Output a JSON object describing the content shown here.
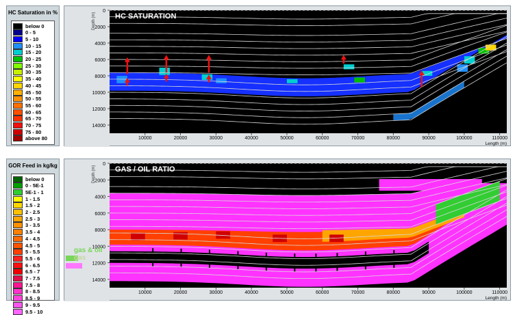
{
  "chart_data": [
    {
      "type": "heatmap",
      "title": "HC SATURATION",
      "xlabel": "Length (m)",
      "ylabel": "Depth (m)",
      "xlim": [
        0,
        112000
      ],
      "ylim": [
        15000,
        0
      ],
      "x_ticks": [
        10000,
        20000,
        30000,
        40000,
        50000,
        60000,
        70000,
        80000,
        90000,
        100000,
        110000
      ],
      "y_ticks": [
        0,
        2000,
        4000,
        6000,
        8000,
        10000,
        12000,
        14000
      ],
      "legend_title": "HC Saturation in %",
      "legend": [
        {
          "label": "below 0",
          "color": "#000000"
        },
        {
          "label": "0 - 5",
          "color": "#00008b"
        },
        {
          "label": "5 - 10",
          "color": "#0000ff"
        },
        {
          "label": "10 - 15",
          "color": "#1e90ff"
        },
        {
          "label": "15 - 20",
          "color": "#00ced1"
        },
        {
          "label": "20 - 25",
          "color": "#00c000"
        },
        {
          "label": "25 - 30",
          "color": "#7fff00"
        },
        {
          "label": "30 - 35",
          "color": "#c8f000"
        },
        {
          "label": "35 - 40",
          "color": "#ffff00"
        },
        {
          "label": "40 - 45",
          "color": "#ffd700"
        },
        {
          "label": "45 - 50",
          "color": "#ffb000"
        },
        {
          "label": "50 - 55",
          "color": "#ff9000"
        },
        {
          "label": "55 - 60",
          "color": "#ff7000"
        },
        {
          "label": "60 - 65",
          "color": "#ff5000"
        },
        {
          "label": "65 - 70",
          "color": "#ff3000"
        },
        {
          "label": "70 - 75",
          "color": "#f01010"
        },
        {
          "label": "75 - 80",
          "color": "#d00000"
        },
        {
          "label": "above 80",
          "color": "#a00000"
        }
      ]
    },
    {
      "type": "heatmap",
      "title": "GAS / OIL RATIO",
      "xlabel": "Length (m)",
      "ylabel": "Depth (m)",
      "xlim": [
        0,
        112000
      ],
      "ylim": [
        15000,
        0
      ],
      "x_ticks": [
        10000,
        20000,
        30000,
        40000,
        50000,
        60000,
        70000,
        80000,
        90000,
        100000,
        110000
      ],
      "y_ticks": [
        0,
        2000,
        4000,
        6000,
        8000,
        10000,
        12000,
        14000
      ],
      "legend_title": "GOR Feed in kg/kg",
      "legend": [
        {
          "label": "below 0",
          "color": "#006400"
        },
        {
          "label": "0 - 5E-1",
          "color": "#00a000"
        },
        {
          "label": "5E-1 - 1",
          "color": "#32cd32"
        },
        {
          "label": "1 - 1.5",
          "color": "#ffff00"
        },
        {
          "label": "1.5 - 2",
          "color": "#ffd700"
        },
        {
          "label": "2 - 2.5",
          "color": "#ffc000"
        },
        {
          "label": "2.5 - 3",
          "color": "#ffa500"
        },
        {
          "label": "3 - 3.5",
          "color": "#ff9000"
        },
        {
          "label": "3.5 - 4",
          "color": "#ff8000"
        },
        {
          "label": "4 - 4.5",
          "color": "#ff6a00"
        },
        {
          "label": "4.5 - 5",
          "color": "#ff5500"
        },
        {
          "label": "5 - 5.5",
          "color": "#ff4000"
        },
        {
          "label": "5.5 - 6",
          "color": "#ff2020"
        },
        {
          "label": "6 - 6.5",
          "color": "#ff1010"
        },
        {
          "label": "6.5 - 7",
          "color": "#f00000"
        },
        {
          "label": "7 - 7.5",
          "color": "#e0104a"
        },
        {
          "label": "7.5 - 8",
          "color": "#ff1493"
        },
        {
          "label": "8 - 8.5",
          "color": "#ff33cc"
        },
        {
          "label": "8.5 - 9",
          "color": "#ff44dd"
        },
        {
          "label": "9 - 9.5",
          "color": "#ff55ee"
        },
        {
          "label": "9.5 - 10",
          "color": "#ff66ff"
        }
      ],
      "overlay_labels": [
        "gas & oil",
        "gas"
      ]
    }
  ],
  "colors": {
    "magenta": "#ff33ff",
    "arrow": "#ee1111",
    "overlay_green": "#7ad65a",
    "overlay_gas_swatch": "#ff77ff"
  }
}
